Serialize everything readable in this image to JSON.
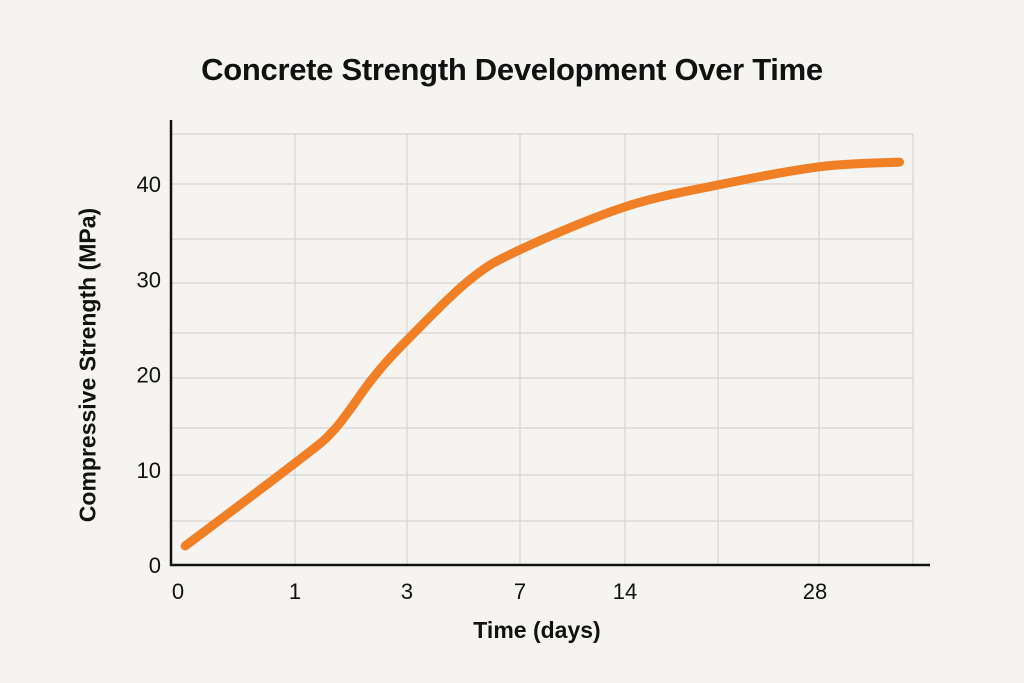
{
  "chart_data": {
    "type": "line",
    "title": "Concrete Strength Development Over Time",
    "xlabel": "Time (days)",
    "ylabel": "Compressive Strength (MPa)",
    "x_ticks": [
      "0",
      "1",
      "3",
      "7",
      "14",
      "28"
    ],
    "y_ticks": [
      "0",
      "10",
      "20",
      "30",
      "40"
    ],
    "ylim": [
      0,
      44
    ],
    "grid": true,
    "line_color": "#f07f26",
    "series": [
      {
        "x": [
          0.1,
          1,
          1.7,
          2.4,
          3,
          5.2,
          7,
          14,
          21,
          28,
          34
        ],
        "y": [
          2,
          10.7,
          14.2,
          19.7,
          23.6,
          29.9,
          33.1,
          37.6,
          39.9,
          41.8,
          42.3
        ]
      }
    ]
  }
}
